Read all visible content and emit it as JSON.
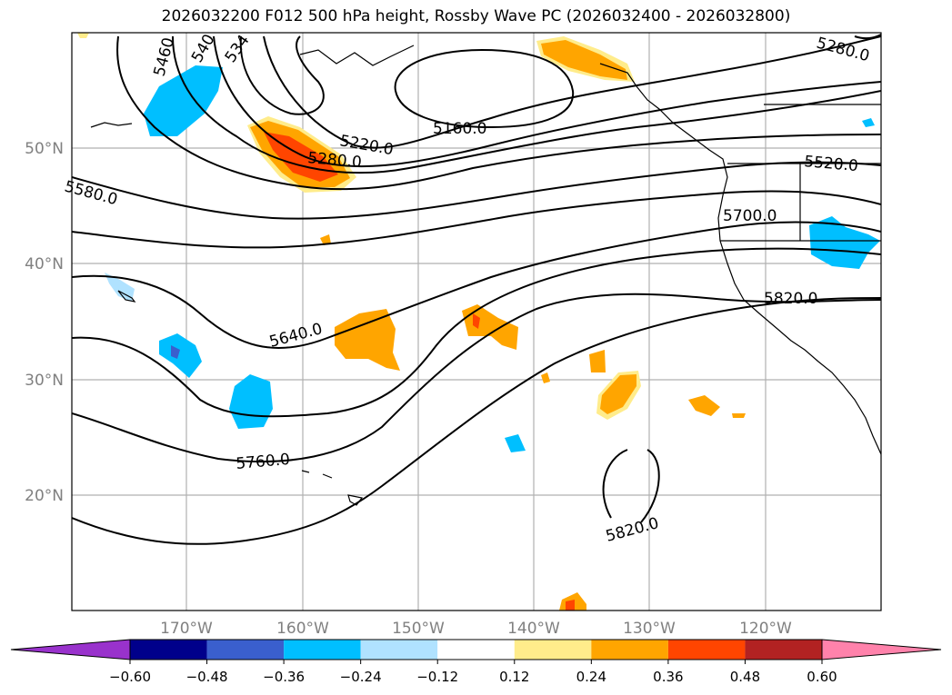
{
  "title": "2026032200 F012 500 hPa height, Rossby Wave PC (2026032400 - 2026032800)",
  "map": {
    "lat_labels": [
      "50°N",
      "40°N",
      "30°N",
      "20°N"
    ],
    "lon_labels": [
      "170°W",
      "160°W",
      "150°W",
      "140°W",
      "130°W",
      "120°W"
    ],
    "contour_labels": [
      "5460",
      "540",
      "534",
      "5280.0",
      "5220.0",
      "5160.0",
      "5280.0",
      "5580.0",
      "5520.0",
      "5700.0",
      "5640.0",
      "5820.0",
      "5760.0",
      "5820.0"
    ],
    "contour_color": "#000000",
    "land_outline_color": "#000000",
    "grid_color": "#b0b0b0",
    "tick_label_color": "#808080"
  },
  "colorbar": {
    "ticks": [
      "−0.60",
      "−0.48",
      "−0.36",
      "−0.24",
      "−0.12",
      "0.12",
      "0.24",
      "0.36",
      "0.48",
      "0.60"
    ],
    "colors": [
      "#9932cc",
      "#00008b",
      "#3a5fcd",
      "#00bfff",
      "#b0e2ff",
      "#ffffff",
      "#ffec8b",
      "#ffa500",
      "#ff4500",
      "#b22222",
      "#ff82ab"
    ]
  }
}
